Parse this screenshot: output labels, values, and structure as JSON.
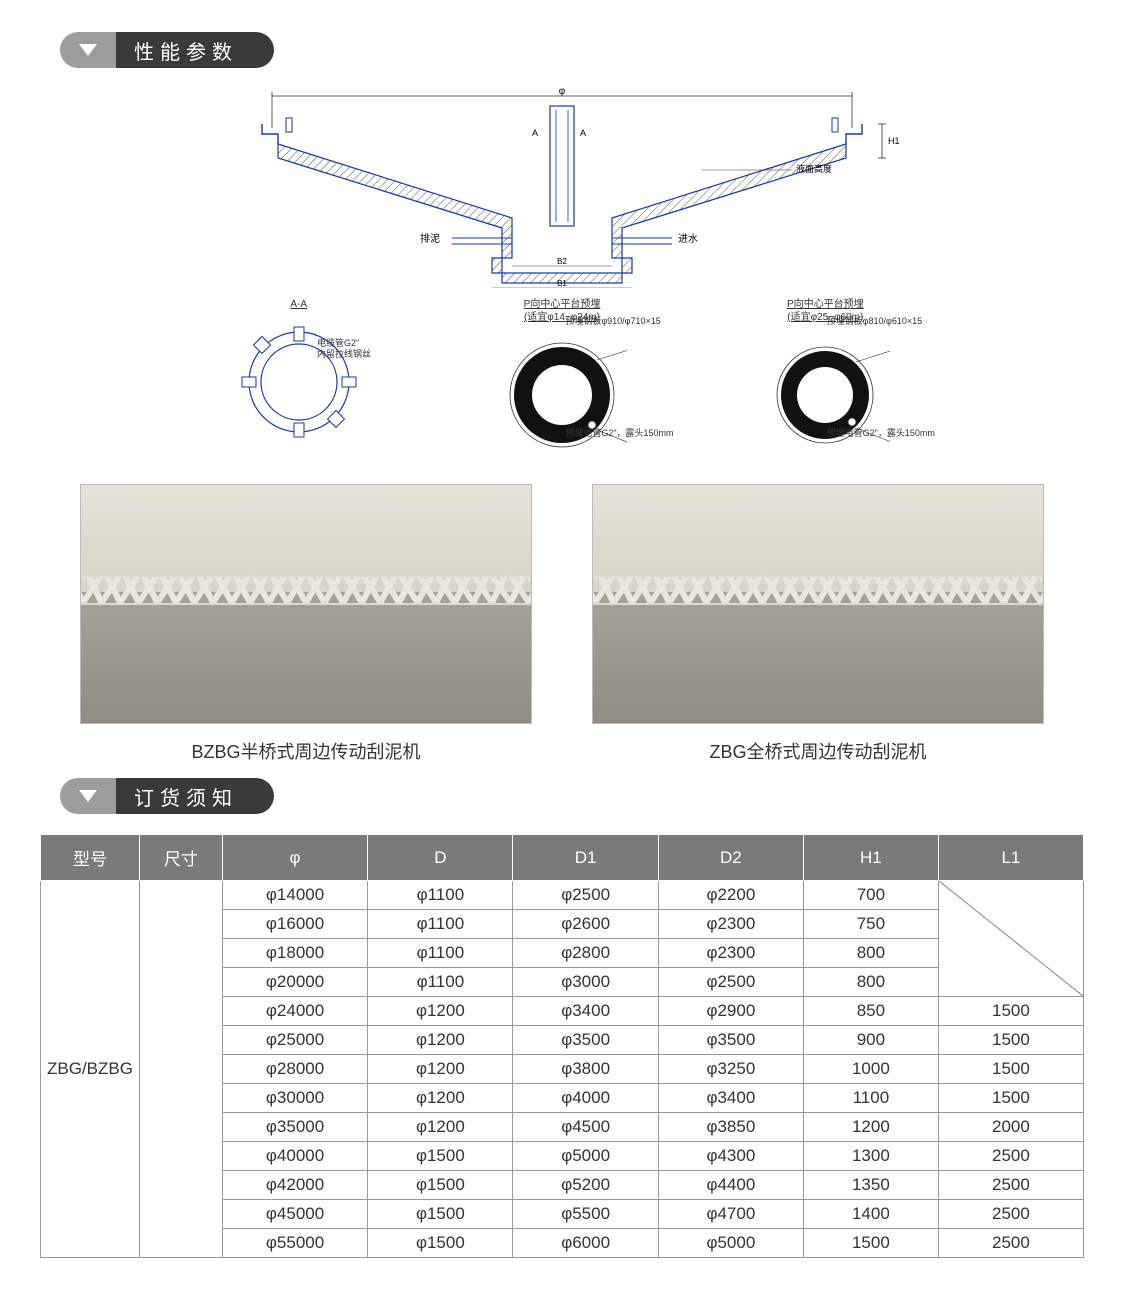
{
  "sections": {
    "spec_title": "性能参数",
    "order_title": "订货须知"
  },
  "diagram": {
    "top_label_phi": "φ",
    "label_H1": "H1",
    "label_排泥": "排泥",
    "label_进水": "进水",
    "label_B2": "B2",
    "label_B1": "B1",
    "label_A": "A",
    "label_AA": "A-A",
    "label_液面高度": "液面高度",
    "section_view_label": "A-A",
    "detail_left": {
      "note1": "电缆管G2\"",
      "note2": "内留拉线钢丝"
    },
    "detail_mid": {
      "title_line1": "P向中心平台预埋",
      "title_line2": "(适宜φ14~φ24m)",
      "ring_note": "预埋钢板φ910/φ710×15",
      "cable_note": "预埋电管G2\"，露头150mm"
    },
    "detail_right": {
      "title_line1": "P向中心平台预埋",
      "title_line2": "(适宜φ25~φ60m)",
      "ring_note": "预埋钢板φ810/φ610×15",
      "cable_note": "预埋电管G2\"，露头150mm"
    }
  },
  "photos": {
    "left_caption": "BZBG半桥式周边传动刮泥机",
    "right_caption": "ZBG全桥式周边传动刮泥机"
  },
  "table": {
    "headers": [
      "型号",
      "尺寸",
      "φ",
      "D",
      "D1",
      "D2",
      "H1",
      "L1"
    ],
    "model": "ZBG/BZBG",
    "rows": [
      {
        "phi": "φ14000",
        "D": "φ1100",
        "D1": "φ2500",
        "D2": "φ2200",
        "H1": "700",
        "L1": null
      },
      {
        "phi": "φ16000",
        "D": "φ1100",
        "D1": "φ2600",
        "D2": "φ2300",
        "H1": "750",
        "L1": null
      },
      {
        "phi": "φ18000",
        "D": "φ1100",
        "D1": "φ2800",
        "D2": "φ2300",
        "H1": "800",
        "L1": null
      },
      {
        "phi": "φ20000",
        "D": "φ1100",
        "D1": "φ3000",
        "D2": "φ2500",
        "H1": "800",
        "L1": null
      },
      {
        "phi": "φ24000",
        "D": "φ1200",
        "D1": "φ3400",
        "D2": "φ2900",
        "H1": "850",
        "L1": "1500"
      },
      {
        "phi": "φ25000",
        "D": "φ1200",
        "D1": "φ3500",
        "D2": "φ3500",
        "H1": "900",
        "L1": "1500"
      },
      {
        "phi": "φ28000",
        "D": "φ1200",
        "D1": "φ3800",
        "D2": "φ3250",
        "H1": "1000",
        "L1": "1500"
      },
      {
        "phi": "φ30000",
        "D": "φ1200",
        "D1": "φ4000",
        "D2": "φ3400",
        "H1": "1100",
        "L1": "1500"
      },
      {
        "phi": "φ35000",
        "D": "φ1200",
        "D1": "φ4500",
        "D2": "φ3850",
        "H1": "1200",
        "L1": "2000"
      },
      {
        "phi": "φ40000",
        "D": "φ1500",
        "D1": "φ5000",
        "D2": "φ4300",
        "H1": "1300",
        "L1": "2500"
      },
      {
        "phi": "φ42000",
        "D": "φ1500",
        "D1": "φ5200",
        "D2": "φ4400",
        "H1": "1350",
        "L1": "2500"
      },
      {
        "phi": "φ45000",
        "D": "φ1500",
        "D1": "φ5500",
        "D2": "φ4700",
        "H1": "1400",
        "L1": "2500"
      },
      {
        "phi": "φ55000",
        "D": "φ1500",
        "D1": "φ6000",
        "D2": "φ5000",
        "H1": "1500",
        "L1": "2500"
      }
    ],
    "l1_diag_rowspan": 4,
    "colors": {
      "header_bg": "#7a7a7a",
      "header_fg": "#ffffff",
      "border": "#999999",
      "cell_bg": "#ffffff"
    },
    "font_size": 17
  }
}
